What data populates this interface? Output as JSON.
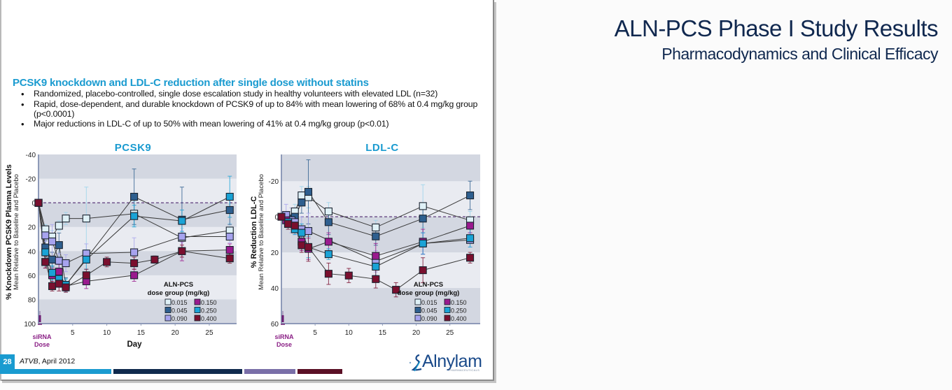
{
  "slide": {
    "title": "ALN-PCS Phase I Study Results",
    "subtitle": "Pharmacodynamics and Clinical Efficacy",
    "section_heading": "PCSK9 knockdown and LDL-C reduction after single dose without statins",
    "bullets": [
      "Randomized, placebo-controlled, single dose escalation study in healthy volunteers with elevated LDL (n=32)",
      "Rapid, dose-dependent, and durable knockdown of PCSK9 of up to 84% with mean lowering of 68% at 0.4 mg/kg group (p<0.0001)",
      "Major reductions in LDL-C of up to 50% with mean lowering of 41% at 0.4 mg/kg group (p<0.01)"
    ],
    "page_number": "28",
    "citation_journal": "ATVB",
    "citation_date": ", April 2012",
    "logo_text": "Alnylam",
    "logo_subtext": "PHARMACEUTICALS",
    "footer_bar_colors": [
      "#1a9bd0",
      "#0f2a4d",
      "#7a6fa8",
      "#5a0f25"
    ]
  },
  "legend": {
    "title_line1": "ALN-PCS",
    "title_line2": "dose group (mg/kg)",
    "entries": [
      {
        "label": "0.015",
        "color": "#dff1f7"
      },
      {
        "label": "0.150",
        "color": "#9a1a8e"
      },
      {
        "label": "0.045",
        "color": "#2e5f8f"
      },
      {
        "label": "0.250",
        "color": "#1aa3d6"
      },
      {
        "label": "0.090",
        "color": "#a7a3ee"
      },
      {
        "label": "0.400",
        "color": "#7a0f2e"
      }
    ]
  },
  "chart_data": [
    {
      "type": "line",
      "title": "PCSK9",
      "xlabel": "Day",
      "ylabel": "% Knockdown PCSK9 Plasma Levels",
      "ylabel2": "Mean Relative to Baseline and Placebo",
      "annotation": [
        "siRNA",
        "Dose"
      ],
      "xlim": [
        0,
        29
      ],
      "ylim": [
        -40,
        100
      ],
      "y_inverted": true,
      "xticks": [
        5,
        10,
        15,
        20,
        25
      ],
      "yticks": [
        -40,
        -20,
        0,
        20,
        40,
        60,
        80,
        100
      ],
      "bands": [
        [
          -40,
          -20
        ],
        [
          0,
          20
        ],
        [
          40,
          60
        ],
        [
          80,
          100
        ]
      ],
      "reference_line": 0,
      "series": [
        {
          "name": "0.015",
          "color": "#dff1f7",
          "x": [
            0,
            1,
            2,
            3,
            4,
            7,
            14,
            21,
            28
          ],
          "y": [
            0,
            22,
            28,
            19,
            13,
            13,
            9,
            29,
            23
          ],
          "err": [
            0,
            4,
            5,
            4,
            5,
            26,
            10,
            8,
            6
          ]
        },
        {
          "name": "0.045",
          "color": "#2e5f8f",
          "x": [
            0,
            1,
            2,
            3,
            4,
            14,
            21,
            28
          ],
          "y": [
            0,
            37,
            47,
            35,
            68,
            -5,
            14,
            6
          ],
          "err": [
            0,
            6,
            6,
            10,
            6,
            23,
            27,
            12
          ]
        },
        {
          "name": "0.090",
          "color": "#a7a3ee",
          "x": [
            0,
            1,
            2,
            3,
            4,
            7,
            14,
            21,
            28
          ],
          "y": [
            0,
            27,
            32,
            48,
            50,
            42,
            41,
            28,
            28
          ],
          "err": [
            0,
            5,
            14,
            6,
            7,
            8,
            12,
            5,
            5
          ]
        },
        {
          "name": "0.150",
          "color": "#9a1a8e",
          "x": [
            0,
            1,
            2,
            3,
            4,
            7,
            14,
            21,
            28
          ],
          "y": [
            0,
            49,
            60,
            57,
            69,
            65,
            60,
            40,
            39
          ],
          "err": [
            0,
            5,
            6,
            6,
            4,
            6,
            5,
            8,
            5
          ]
        },
        {
          "name": "0.250",
          "color": "#1aa3d6",
          "x": [
            0,
            1,
            2,
            3,
            4,
            7,
            14,
            21,
            28
          ],
          "y": [
            0,
            41,
            58,
            63,
            68,
            47,
            11,
            15,
            -5
          ],
          "err": [
            0,
            6,
            6,
            6,
            5,
            8,
            9,
            9,
            17
          ]
        },
        {
          "name": "0.400",
          "color": "#7a0f2e",
          "x": [
            0,
            1,
            2,
            3,
            4,
            7,
            10,
            14,
            17,
            21,
            28
          ],
          "y": [
            0,
            49,
            69,
            67,
            70,
            60,
            49,
            50,
            47,
            40,
            46
          ],
          "err": [
            0,
            5,
            4,
            6,
            4,
            5,
            4,
            5,
            3,
            5,
            4
          ]
        }
      ]
    },
    {
      "type": "line",
      "title": "LDL-C",
      "xlabel": "",
      "ylabel": "% Reduction LDL-C",
      "ylabel2": "Mean Relative to Baseline and Placebo",
      "annotation": [
        "siRNA",
        "Dose"
      ],
      "xlim": [
        0,
        29.5
      ],
      "ylim": [
        -35,
        60
      ],
      "y_inverted": true,
      "xticks": [
        5,
        10,
        15,
        20,
        25
      ],
      "yticks": [
        -20,
        0,
        20,
        40,
        60
      ],
      "bands": [
        [
          -35,
          -20
        ],
        [
          0,
          20
        ],
        [
          40,
          60
        ]
      ],
      "reference_line": 0,
      "series": [
        {
          "name": "0.015",
          "color": "#dff1f7",
          "x": [
            1,
            2,
            3,
            4,
            7,
            14,
            21,
            28
          ],
          "y": [
            4,
            -3,
            -12,
            -11,
            -3,
            6,
            -6,
            2
          ],
          "err": [
            3,
            4,
            5,
            6,
            5,
            4,
            12,
            5
          ]
        },
        {
          "name": "0.045",
          "color": "#2e5f8f",
          "x": [
            1,
            2,
            3,
            4,
            7,
            14,
            21,
            28
          ],
          "y": [
            1,
            0,
            -8,
            -14,
            3,
            11,
            1,
            -12
          ],
          "err": [
            4,
            4,
            6,
            18,
            7,
            5,
            8,
            8
          ]
        },
        {
          "name": "0.090",
          "color": "#a7a3ee",
          "x": [
            0.7,
            1.5,
            2,
            3,
            4,
            14,
            21,
            28
          ],
          "y": [
            -1,
            2,
            3,
            7,
            8,
            25,
            15,
            13
          ],
          "err": [
            6,
            7,
            7,
            7,
            10,
            6,
            6,
            4
          ]
        },
        {
          "name": "0.150",
          "color": "#9a1a8e",
          "x": [
            0.7,
            2,
            3,
            4,
            7,
            14,
            21,
            28
          ],
          "y": [
            2,
            5,
            14,
            18,
            14,
            22,
            14,
            5
          ],
          "err": [
            3,
            3,
            5,
            6,
            5,
            7,
            7,
            4
          ]
        },
        {
          "name": "0.250",
          "color": "#1aa3d6",
          "x": [
            1,
            2,
            3,
            4,
            7,
            14,
            21,
            28
          ],
          "y": [
            3,
            7,
            9,
            17,
            21,
            28,
            15,
            12
          ],
          "err": [
            3,
            3,
            5,
            6,
            3,
            5,
            6,
            5
          ]
        },
        {
          "name": "0.400",
          "color": "#7a0f2e",
          "x": [
            0,
            1,
            2,
            3,
            4,
            7,
            10,
            14,
            17,
            21,
            28
          ],
          "y": [
            0,
            4,
            5,
            16,
            17,
            32,
            33,
            35,
            41,
            30,
            23
          ],
          "err": [
            0,
            3,
            4,
            4,
            8,
            6,
            4,
            5,
            4,
            7,
            3
          ]
        }
      ]
    }
  ]
}
